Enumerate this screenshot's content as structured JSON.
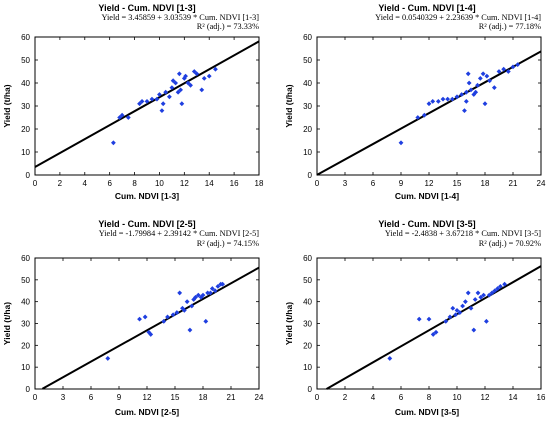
{
  "chart_data": [
    {
      "type": "scatter",
      "title": "Yield - Cum. NDVI [1-3]",
      "equation": "Yield = 3.45859 + 3.03539 * Cum. NDVI [1-3]",
      "r2": "R² (adj.) = 73.33%",
      "xlabel": "Cum. NDVI [1-3]",
      "ylabel": "Yield (t/ha)",
      "xlim": [
        0,
        18
      ],
      "ylim": [
        0,
        60
      ],
      "xticks": [
        0,
        2,
        4,
        6,
        8,
        10,
        12,
        14,
        16,
        18
      ],
      "yticks": [
        0,
        10,
        20,
        30,
        40,
        50,
        60
      ],
      "fit": {
        "intercept": 3.45859,
        "slope": 3.03539,
        "x": [
          0,
          18
        ]
      },
      "points": [
        [
          6.3,
          14
        ],
        [
          6.8,
          25
        ],
        [
          7.0,
          26
        ],
        [
          7.5,
          25
        ],
        [
          8.4,
          31
        ],
        [
          8.6,
          32
        ],
        [
          9.0,
          32
        ],
        [
          9.4,
          33
        ],
        [
          9.8,
          33
        ],
        [
          10.0,
          35
        ],
        [
          10.2,
          28
        ],
        [
          10.3,
          31
        ],
        [
          10.5,
          36
        ],
        [
          10.8,
          34
        ],
        [
          11.0,
          38
        ],
        [
          11.1,
          41
        ],
        [
          11.3,
          40
        ],
        [
          11.5,
          36
        ],
        [
          11.6,
          44
        ],
        [
          11.7,
          37
        ],
        [
          11.8,
          31
        ],
        [
          12.0,
          42
        ],
        [
          12.1,
          43
        ],
        [
          12.3,
          40
        ],
        [
          12.5,
          39
        ],
        [
          12.8,
          45
        ],
        [
          13.0,
          44
        ],
        [
          13.4,
          37
        ],
        [
          13.6,
          42
        ],
        [
          14.0,
          43
        ],
        [
          14.5,
          46
        ]
      ],
      "grid": false
    },
    {
      "type": "scatter",
      "title": "Yield - Cum. NDVI [1-4]",
      "equation": "Yield = 0.0540329 + 2.23639 * Cum. NDVI [1-4]",
      "r2": "R² (adj.) = 77.18%",
      "xlabel": "Cum. NDVI [1-4]",
      "ylabel": "Yield (t/ha)",
      "xlim": [
        0,
        24
      ],
      "ylim": [
        0,
        60
      ],
      "xticks": [
        0,
        3,
        6,
        9,
        12,
        15,
        18,
        21,
        24
      ],
      "yticks": [
        0,
        10,
        20,
        30,
        40,
        50,
        60
      ],
      "fit": {
        "intercept": 0.0540329,
        "slope": 2.23639,
        "x": [
          0,
          24
        ]
      },
      "points": [
        [
          9.0,
          14
        ],
        [
          10.8,
          25
        ],
        [
          11.5,
          26
        ],
        [
          12.0,
          31
        ],
        [
          12.4,
          32
        ],
        [
          13.0,
          32
        ],
        [
          13.5,
          33
        ],
        [
          14.0,
          33
        ],
        [
          14.5,
          33
        ],
        [
          15.0,
          34
        ],
        [
          15.5,
          35
        ],
        [
          15.8,
          28
        ],
        [
          16.0,
          36
        ],
        [
          16.0,
          32
        ],
        [
          16.2,
          44
        ],
        [
          16.3,
          40
        ],
        [
          16.5,
          37
        ],
        [
          16.8,
          35
        ],
        [
          17.0,
          36
        ],
        [
          17.2,
          39
        ],
        [
          17.5,
          42
        ],
        [
          17.8,
          44
        ],
        [
          18.0,
          31
        ],
        [
          18.2,
          43
        ],
        [
          18.5,
          41
        ],
        [
          19.0,
          38
        ],
        [
          19.5,
          45
        ],
        [
          20.0,
          46
        ],
        [
          20.5,
          45
        ],
        [
          21.0,
          47
        ],
        [
          21.5,
          48
        ]
      ],
      "grid": false
    },
    {
      "type": "scatter",
      "title": "Yield - Cum. NDVI [2-5]",
      "equation": "Yield = -1.79984 + 2.39142 * Cum. NDVI [2-5]",
      "r2": "R² (adj.) = 74.15%",
      "xlabel": "Cum. NDVI [2-5]",
      "ylabel": "Yield (t/ha)",
      "xlim": [
        0,
        24
      ],
      "ylim": [
        0,
        60
      ],
      "xticks": [
        0,
        3,
        6,
        9,
        12,
        15,
        18,
        21,
        24
      ],
      "yticks": [
        0,
        10,
        20,
        30,
        40,
        50,
        60
      ],
      "fit": {
        "intercept": -1.79984,
        "slope": 2.39142,
        "x": [
          0.8,
          24
        ]
      },
      "points": [
        [
          7.8,
          14
        ],
        [
          11.2,
          32
        ],
        [
          11.8,
          33
        ],
        [
          12.2,
          26
        ],
        [
          12.4,
          25
        ],
        [
          13.8,
          31
        ],
        [
          14.2,
          33
        ],
        [
          14.8,
          34
        ],
        [
          15.2,
          35
        ],
        [
          15.5,
          44
        ],
        [
          15.8,
          37
        ],
        [
          16.0,
          36
        ],
        [
          16.3,
          40
        ],
        [
          16.6,
          27
        ],
        [
          16.8,
          38
        ],
        [
          17.0,
          41
        ],
        [
          17.2,
          42
        ],
        [
          17.5,
          43
        ],
        [
          17.8,
          42
        ],
        [
          18.0,
          43
        ],
        [
          18.3,
          31
        ],
        [
          18.5,
          44
        ],
        [
          18.8,
          44
        ],
        [
          19.0,
          46
        ],
        [
          19.3,
          45
        ],
        [
          19.6,
          47
        ],
        [
          19.9,
          48
        ],
        [
          20.1,
          48
        ]
      ],
      "grid": false
    },
    {
      "type": "scatter",
      "title": "Yield - Cum. NDVI [3-5]",
      "equation": "Yield = -2.4838 + 3.67218 * Cum. NDVI [3-5]",
      "r2": "R² (adj.) = 70.92%",
      "xlabel": "Cum. NDVI [3-5]",
      "ylabel": "Yield (t/ha)",
      "xlim": [
        0,
        16
      ],
      "ylim": [
        0,
        60
      ],
      "xticks": [
        0,
        2,
        4,
        6,
        8,
        10,
        12,
        14,
        16
      ],
      "yticks": [
        0,
        10,
        20,
        30,
        40,
        50,
        60
      ],
      "fit": {
        "intercept": -2.4838,
        "slope": 3.67218,
        "x": [
          0.68,
          16
        ]
      },
      "points": [
        [
          5.2,
          14
        ],
        [
          7.3,
          32
        ],
        [
          8.0,
          32
        ],
        [
          8.3,
          25
        ],
        [
          8.5,
          26
        ],
        [
          9.2,
          31
        ],
        [
          9.5,
          33
        ],
        [
          9.7,
          37
        ],
        [
          9.9,
          34
        ],
        [
          10.0,
          36
        ],
        [
          10.2,
          35
        ],
        [
          10.4,
          38
        ],
        [
          10.6,
          40
        ],
        [
          10.8,
          44
        ],
        [
          11.0,
          37
        ],
        [
          11.2,
          27
        ],
        [
          11.3,
          41
        ],
        [
          11.5,
          44
        ],
        [
          11.7,
          42
        ],
        [
          11.9,
          43
        ],
        [
          12.1,
          31
        ],
        [
          12.3,
          43
        ],
        [
          12.5,
          44
        ],
        [
          12.7,
          45
        ],
        [
          12.9,
          46
        ],
        [
          13.1,
          47
        ],
        [
          13.4,
          48
        ]
      ],
      "grid": false
    }
  ],
  "colors": {
    "points": "#1f3fe0",
    "fit": "#000000",
    "frame": "#000000"
  }
}
